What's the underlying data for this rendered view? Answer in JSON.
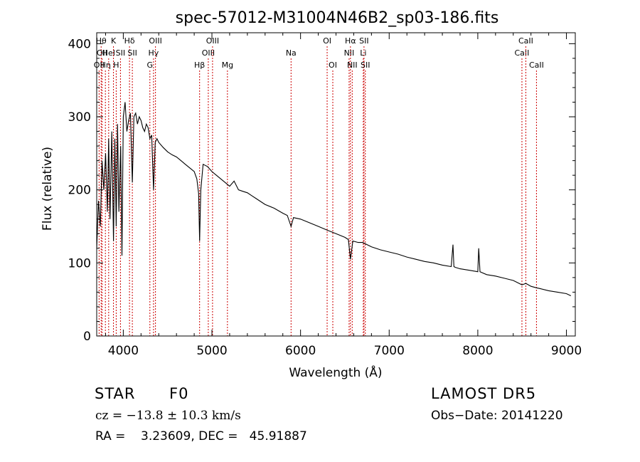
{
  "chart_data": {
    "type": "line",
    "title": "spec-57012-M31004N46B2_sp03-186.fits",
    "xlabel": "Wavelength (Å)",
    "ylabel": "Flux (relative)",
    "xlim": [
      3700,
      9100
    ],
    "ylim": [
      0,
      415
    ],
    "xticks": [
      4000,
      5000,
      6000,
      7000,
      8000,
      9000
    ],
    "xtick_labels": [
      "4000",
      "5000",
      "6000",
      "7000",
      "8000",
      "9000"
    ],
    "yticks": [
      0,
      100,
      200,
      300,
      400
    ],
    "ytick_labels": [
      "0",
      "100",
      "200",
      "300",
      "400"
    ],
    "grid": false,
    "line_color": "#000000",
    "marker_color": "#cc0000",
    "series": [
      {
        "x": [
          3700,
          3720,
          3740,
          3760,
          3780,
          3800,
          3820,
          3835,
          3850,
          3870,
          3889,
          3905,
          3920,
          3935,
          3950,
          3970,
          3985,
          4000,
          4020,
          4040,
          4060,
          4080,
          4102,
          4120,
          4140,
          4160,
          4180,
          4200,
          4220,
          4240,
          4260,
          4280,
          4300,
          4320,
          4341,
          4360,
          4380,
          4400,
          4450,
          4500,
          4550,
          4600,
          4650,
          4700,
          4750,
          4800,
          4830,
          4850,
          4861,
          4875,
          4900,
          4950,
          5000,
          5050,
          5100,
          5150,
          5200,
          5250,
          5300,
          5350,
          5400,
          5450,
          5500,
          5600,
          5700,
          5800,
          5850,
          5893,
          5920,
          6000,
          6100,
          6200,
          6300,
          6400,
          6500,
          6540,
          6563,
          6590,
          6650,
          6700,
          6800,
          6900,
          7000,
          7100,
          7200,
          7300,
          7400,
          7500,
          7600,
          7700,
          7720,
          7730,
          7745,
          7800,
          7900,
          8000,
          8010,
          8025,
          8100,
          8200,
          8300,
          8400,
          8498,
          8542,
          8600,
          8662,
          8700,
          8800,
          8900,
          9000,
          9050
        ],
        "y": [
          120,
          185,
          150,
          240,
          200,
          250,
          170,
          270,
          160,
          280,
          130,
          270,
          150,
          290,
          170,
          260,
          110,
          300,
          320,
          280,
          295,
          305,
          210,
          300,
          305,
          290,
          300,
          295,
          285,
          280,
          290,
          285,
          270,
          275,
          200,
          265,
          270,
          265,
          258,
          252,
          248,
          245,
          240,
          235,
          230,
          225,
          215,
          195,
          130,
          200,
          235,
          232,
          225,
          220,
          215,
          210,
          205,
          212,
          200,
          198,
          196,
          192,
          188,
          180,
          175,
          168,
          165,
          150,
          162,
          160,
          155,
          150,
          145,
          140,
          135,
          132,
          105,
          130,
          128,
          128,
          122,
          118,
          115,
          112,
          108,
          105,
          102,
          100,
          97,
          95,
          125,
          95,
          94,
          92,
          90,
          88,
          120,
          88,
          84,
          82,
          79,
          76,
          70,
          72,
          68,
          66,
          65,
          62,
          60,
          58,
          55
        ]
      }
    ],
    "lines": [
      {
        "x": 3727,
        "label": "OII",
        "row": 2
      },
      {
        "x": 3750,
        "label": "Hθ",
        "row": 0
      },
      {
        "x": 3760,
        "label": "OII",
        "row": 1
      },
      {
        "x": 3798,
        "label": "Hη",
        "row": 2
      },
      {
        "x": 3835,
        "label": "HeI",
        "row": 1
      },
      {
        "x": 3889,
        "label": "K",
        "row": 0
      },
      {
        "x": 3920,
        "label": "H",
        "row": 2
      },
      {
        "x": 3968,
        "label": "SII",
        "row": 1
      },
      {
        "x": 4070,
        "label": "Hδ",
        "row": 0
      },
      {
        "x": 4102,
        "label": "SII",
        "row": 1
      },
      {
        "x": 4300,
        "label": "G",
        "row": 2
      },
      {
        "x": 4341,
        "label": "Hγ",
        "row": 1
      },
      {
        "x": 4363,
        "label": "OIII",
        "row": 0
      },
      {
        "x": 4861,
        "label": "Hβ",
        "row": 2
      },
      {
        "x": 4959,
        "label": "OIII",
        "row": 1
      },
      {
        "x": 5007,
        "label": "OIII",
        "row": 0
      },
      {
        "x": 5175,
        "label": "Mg",
        "row": 2
      },
      {
        "x": 5893,
        "label": "Na",
        "row": 1
      },
      {
        "x": 6300,
        "label": "OI",
        "row": 0
      },
      {
        "x": 6364,
        "label": "OI",
        "row": 2
      },
      {
        "x": 6548,
        "label": "NII",
        "row": 1
      },
      {
        "x": 6563,
        "label": "Hα",
        "row": 0
      },
      {
        "x": 6583,
        "label": "NII",
        "row": 2
      },
      {
        "x": 6708,
        "label": "Li",
        "row": 1
      },
      {
        "x": 6716,
        "label": "SII",
        "row": 0
      },
      {
        "x": 6731,
        "label": "SII",
        "row": 2
      },
      {
        "x": 8498,
        "label": "CaII",
        "row": 1
      },
      {
        "x": 8542,
        "label": "CaII",
        "row": 0
      },
      {
        "x": 8662,
        "label": "CaII",
        "row": 2
      }
    ]
  },
  "info": {
    "class": "STAR",
    "subclass": "F0",
    "survey": "LAMOST DR5",
    "cz": "cz = −13.8 ± 10.3 km/s",
    "obs_date": "Obs−Date: 20141220",
    "coords": "RA =    3.23609, DEC =   45.91887"
  }
}
